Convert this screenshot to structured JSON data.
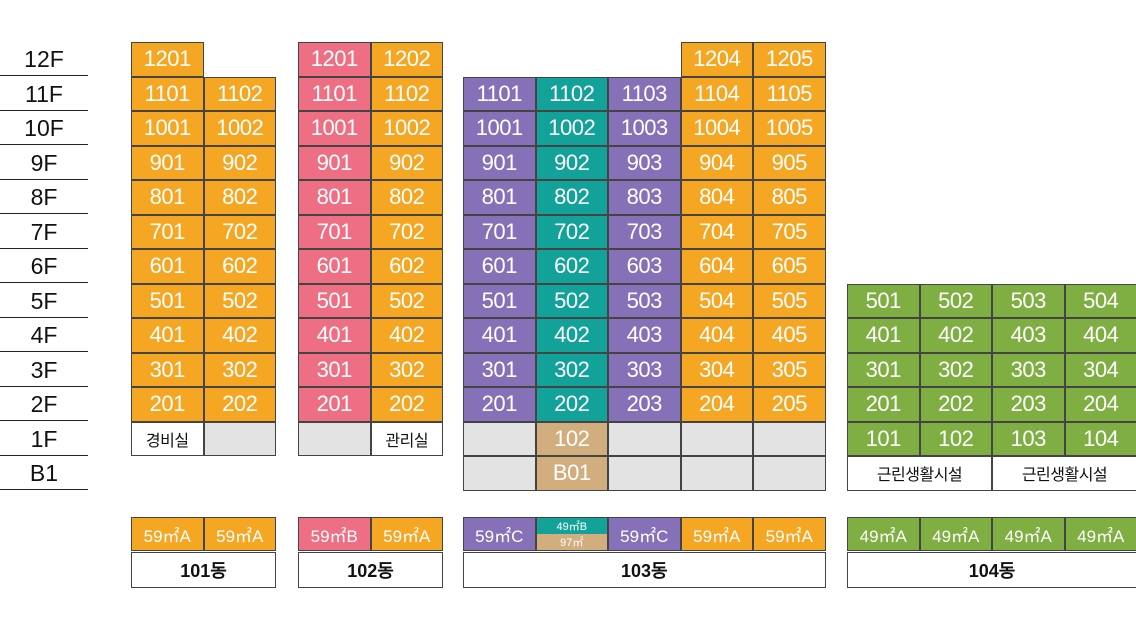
{
  "floors": [
    "12F",
    "11F",
    "10F",
    "9F",
    "8F",
    "7F",
    "6F",
    "5F",
    "4F",
    "3F",
    "2F",
    "1F",
    "B1"
  ],
  "buildings": [
    {
      "name": "101동",
      "columns": [
        {
          "units": [
            "1201",
            "1101",
            "1001",
            "901",
            "801",
            "701",
            "601",
            "501",
            "401",
            "301",
            "201"
          ],
          "ground": "경비실",
          "type": "59㎡A"
        },
        {
          "units": [
            "",
            "1102",
            "1002",
            "902",
            "802",
            "702",
            "602",
            "502",
            "402",
            "302",
            "202"
          ],
          "ground": "",
          "type": "59㎡A"
        }
      ]
    },
    {
      "name": "102동",
      "columns": [
        {
          "units": [
            "1201",
            "1101",
            "1001",
            "901",
            "801",
            "701",
            "601",
            "501",
            "401",
            "301",
            "201"
          ],
          "ground": "",
          "type": "59㎡B"
        },
        {
          "units": [
            "1202",
            "1102",
            "1002",
            "902",
            "802",
            "702",
            "602",
            "502",
            "402",
            "302",
            "202"
          ],
          "ground": "관리실",
          "type": "59㎡A"
        }
      ]
    },
    {
      "name": "103동",
      "columns": [
        {
          "units": [
            "",
            "1101",
            "1001",
            "901",
            "801",
            "701",
            "601",
            "501",
            "401",
            "301",
            "201"
          ],
          "ground": "",
          "basement": "",
          "type": "59㎡C"
        },
        {
          "units": [
            "",
            "1102",
            "1002",
            "902",
            "802",
            "702",
            "602",
            "502",
            "402",
            "302",
            "202"
          ],
          "ground": "102",
          "basement": "B01",
          "type_top": "49㎡B",
          "type_bottom": "97㎡"
        },
        {
          "units": [
            "",
            "1103",
            "1003",
            "903",
            "803",
            "703",
            "603",
            "503",
            "403",
            "303",
            "203"
          ],
          "ground": "",
          "basement": "",
          "type": "59㎡C"
        },
        {
          "units": [
            "1204",
            "1104",
            "1004",
            "904",
            "804",
            "704",
            "604",
            "504",
            "404",
            "304",
            "204"
          ],
          "ground": "",
          "basement": "",
          "type": "59㎡A"
        },
        {
          "units": [
            "1205",
            "1105",
            "1005",
            "905",
            "805",
            "705",
            "605",
            "505",
            "405",
            "305",
            "205"
          ],
          "ground": "",
          "basement": "",
          "type": "59㎡A"
        }
      ]
    },
    {
      "name": "104동",
      "columns": [
        {
          "units": [
            "501",
            "401",
            "301",
            "201",
            "101"
          ],
          "type": "49㎡A"
        },
        {
          "units": [
            "502",
            "402",
            "302",
            "202",
            "102"
          ],
          "type": "49㎡A"
        },
        {
          "units": [
            "503",
            "403",
            "303",
            "203",
            "103"
          ],
          "type": "49㎡A"
        },
        {
          "units": [
            "504",
            "404",
            "304",
            "204",
            "104"
          ],
          "type": "49㎡A"
        }
      ],
      "facilities": [
        "근린생활시설",
        "근린생활시설"
      ]
    }
  ],
  "colors": {
    "orange": "#F5A623",
    "pink": "#EE6F83",
    "purple": "#8670B8",
    "teal": "#12A29A",
    "tan": "#D2AE7E",
    "green": "#7FAE42",
    "grey": "#E3E3E3"
  }
}
